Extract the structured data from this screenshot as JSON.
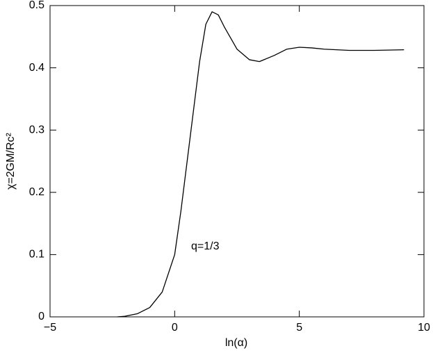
{
  "chart_data": {
    "type": "line",
    "xlabel": "ln(α)",
    "ylabel": "χ=2GM/Rc²",
    "annotation": "q=1/3",
    "x": [
      -2.3,
      -2,
      -1.5,
      -1,
      -0.5,
      0,
      0.25,
      0.5,
      0.75,
      1.0,
      1.25,
      1.5,
      1.75,
      2.0,
      2.5,
      3.0,
      3.4,
      4.0,
      4.5,
      5.0,
      5.5,
      6.0,
      7.0,
      8.0,
      9.2
    ],
    "values": [
      0.0,
      0.001,
      0.005,
      0.015,
      0.04,
      0.1,
      0.17,
      0.25,
      0.33,
      0.41,
      0.47,
      0.49,
      0.485,
      0.465,
      0.43,
      0.413,
      0.41,
      0.42,
      0.43,
      0.433,
      0.432,
      0.43,
      0.428,
      0.428,
      0.429
    ],
    "color": "#000000",
    "xlim": [
      -5,
      10
    ],
    "ylim": [
      0,
      0.5
    ],
    "xticks": [
      {
        "value": -5,
        "label": "−5"
      },
      0,
      5,
      10
    ],
    "yticks": [
      0,
      0.1,
      0.2,
      0.3,
      0.4,
      0.5
    ]
  }
}
